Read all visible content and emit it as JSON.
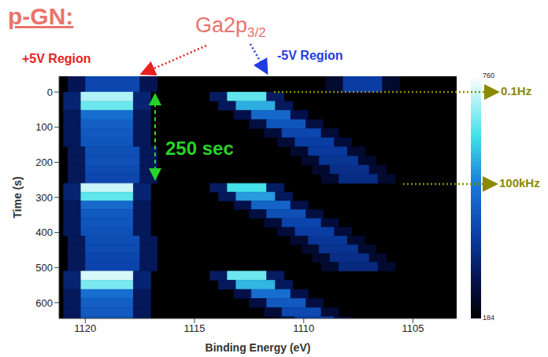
{
  "chart_data": {
    "type": "heatmap",
    "title": "p-GN:",
    "x_label": "Binding Energy (eV)",
    "y_label": "Time (s)",
    "xlim": [
      1121.2,
      1103
    ],
    "xticks": [
      1120,
      1115,
      1110,
      1105
    ],
    "ylim": [
      645,
      -45
    ],
    "yticks": [
      0,
      100,
      200,
      300,
      400,
      500,
      600
    ],
    "colorbar": {
      "range": [
        184,
        760
      ],
      "ticks": [
        184,
        760
      ]
    },
    "annotations": {
      "peak": {
        "text": "Ga2p",
        "subscript": "3/2"
      },
      "left_region": "+5V Region",
      "right_region": "-5V Region",
      "period": "250 sec",
      "low_freq": "0.1Hz",
      "high_freq": "100kHz"
    },
    "rows": [
      {
        "t0": -52,
        "t1": 0,
        "cells": [
          [
            1120.8,
            1120.0,
            280
          ],
          [
            1120.0,
            1117.5,
            400
          ],
          [
            1117.5,
            1116.7,
            280
          ],
          [
            1109.0,
            1108.2,
            240
          ],
          [
            1108.2,
            1106.4,
            380
          ],
          [
            1106.4,
            1105.6,
            240
          ]
        ]
      },
      {
        "t0": 0,
        "t1": 26,
        "cells": [
          [
            1121.0,
            1120.2,
            320
          ],
          [
            1120.2,
            1117.8,
            700
          ],
          [
            1117.8,
            1117.0,
            320
          ],
          [
            1114.3,
            1113.5,
            300
          ],
          [
            1113.5,
            1111.7,
            640
          ],
          [
            1111.7,
            1110.9,
            300
          ]
        ]
      },
      {
        "t0": 26,
        "t1": 52,
        "cells": [
          [
            1121.0,
            1120.2,
            320
          ],
          [
            1120.2,
            1117.8,
            650
          ],
          [
            1117.8,
            1117.0,
            320
          ],
          [
            1113.9,
            1113.1,
            290
          ],
          [
            1113.1,
            1111.3,
            560
          ],
          [
            1111.3,
            1110.5,
            290
          ]
        ]
      },
      {
        "t0": 52,
        "t1": 78,
        "cells": [
          [
            1121.0,
            1120.2,
            290
          ],
          [
            1120.2,
            1117.8,
            480
          ],
          [
            1117.8,
            1117.0,
            290
          ],
          [
            1113.2,
            1112.4,
            270
          ],
          [
            1112.4,
            1110.6,
            470
          ],
          [
            1110.6,
            1109.8,
            270
          ]
        ]
      },
      {
        "t0": 78,
        "t1": 104,
        "cells": [
          [
            1121.0,
            1120.2,
            290
          ],
          [
            1120.2,
            1117.8,
            450
          ],
          [
            1117.8,
            1117.0,
            290
          ],
          [
            1112.5,
            1111.7,
            260
          ],
          [
            1111.7,
            1109.9,
            430
          ],
          [
            1109.9,
            1109.1,
            260
          ]
        ]
      },
      {
        "t0": 104,
        "t1": 130,
        "cells": [
          [
            1121.0,
            1120.2,
            290
          ],
          [
            1120.2,
            1117.8,
            440
          ],
          [
            1117.8,
            1117.0,
            290
          ],
          [
            1111.8,
            1111.0,
            250
          ],
          [
            1111.0,
            1109.2,
            400
          ],
          [
            1109.2,
            1108.4,
            250
          ]
        ]
      },
      {
        "t0": 130,
        "t1": 156,
        "cells": [
          [
            1121.0,
            1120.2,
            290
          ],
          [
            1120.2,
            1117.8,
            430
          ],
          [
            1117.8,
            1117.0,
            290
          ],
          [
            1111.2,
            1110.4,
            250
          ],
          [
            1110.4,
            1108.6,
            380
          ],
          [
            1108.6,
            1107.8,
            250
          ]
        ]
      },
      {
        "t0": 156,
        "t1": 182,
        "cells": [
          [
            1120.8,
            1120.0,
            290
          ],
          [
            1120.0,
            1117.5,
            420
          ],
          [
            1117.5,
            1116.7,
            290
          ],
          [
            1110.6,
            1109.8,
            240
          ],
          [
            1109.8,
            1108.0,
            370
          ],
          [
            1108.0,
            1107.2,
            240
          ]
        ]
      },
      {
        "t0": 182,
        "t1": 208,
        "cells": [
          [
            1120.8,
            1120.0,
            290
          ],
          [
            1120.0,
            1117.5,
            420
          ],
          [
            1117.5,
            1116.7,
            290
          ],
          [
            1110.1,
            1109.3,
            240
          ],
          [
            1109.3,
            1107.5,
            360
          ],
          [
            1107.5,
            1106.7,
            240
          ]
        ]
      },
      {
        "t0": 208,
        "t1": 234,
        "cells": [
          [
            1120.8,
            1120.0,
            290
          ],
          [
            1120.0,
            1117.5,
            410
          ],
          [
            1117.5,
            1116.7,
            290
          ],
          [
            1109.6,
            1108.8,
            240
          ],
          [
            1108.8,
            1107.0,
            350
          ],
          [
            1107.0,
            1106.2,
            240
          ]
        ]
      },
      {
        "t0": 234,
        "t1": 260,
        "cells": [
          [
            1120.8,
            1120.0,
            290
          ],
          [
            1120.0,
            1117.5,
            400
          ],
          [
            1117.5,
            1116.7,
            290
          ],
          [
            1109.2,
            1108.4,
            240
          ],
          [
            1108.4,
            1106.6,
            340
          ],
          [
            1106.6,
            1105.8,
            240
          ]
        ]
      },
      {
        "t0": 260,
        "t1": 285,
        "cells": [
          [
            1121.0,
            1120.2,
            320
          ],
          [
            1120.2,
            1117.8,
            720
          ],
          [
            1117.8,
            1117.0,
            320
          ],
          [
            1114.3,
            1113.5,
            300
          ],
          [
            1113.5,
            1111.7,
            620
          ],
          [
            1111.7,
            1110.9,
            300
          ]
        ]
      },
      {
        "t0": 285,
        "t1": 310,
        "cells": [
          [
            1121.0,
            1120.2,
            320
          ],
          [
            1120.2,
            1117.8,
            640
          ],
          [
            1117.8,
            1117.0,
            320
          ],
          [
            1113.9,
            1113.1,
            290
          ],
          [
            1113.1,
            1111.3,
            540
          ],
          [
            1111.3,
            1110.5,
            290
          ]
        ]
      },
      {
        "t0": 310,
        "t1": 335,
        "cells": [
          [
            1121.0,
            1120.2,
            290
          ],
          [
            1120.2,
            1117.8,
            470
          ],
          [
            1117.8,
            1117.0,
            290
          ],
          [
            1113.2,
            1112.4,
            270
          ],
          [
            1112.4,
            1110.6,
            460
          ],
          [
            1110.6,
            1109.8,
            270
          ]
        ]
      },
      {
        "t0": 335,
        "t1": 360,
        "cells": [
          [
            1121.0,
            1120.2,
            290
          ],
          [
            1120.2,
            1117.8,
            440
          ],
          [
            1117.8,
            1117.0,
            290
          ],
          [
            1112.5,
            1111.7,
            260
          ],
          [
            1111.7,
            1109.9,
            420
          ],
          [
            1109.9,
            1109.1,
            260
          ]
        ]
      },
      {
        "t0": 360,
        "t1": 385,
        "cells": [
          [
            1121.0,
            1120.2,
            290
          ],
          [
            1120.2,
            1117.8,
            430
          ],
          [
            1117.8,
            1117.0,
            290
          ],
          [
            1111.8,
            1111.0,
            250
          ],
          [
            1111.0,
            1109.2,
            395
          ],
          [
            1109.2,
            1108.4,
            250
          ]
        ]
      },
      {
        "t0": 385,
        "t1": 410,
        "cells": [
          [
            1121.0,
            1120.2,
            290
          ],
          [
            1120.2,
            1117.8,
            420
          ],
          [
            1117.8,
            1117.0,
            290
          ],
          [
            1111.2,
            1110.4,
            250
          ],
          [
            1110.4,
            1108.6,
            380
          ],
          [
            1108.6,
            1107.8,
            250
          ]
        ]
      },
      {
        "t0": 410,
        "t1": 435,
        "cells": [
          [
            1120.8,
            1120.0,
            290
          ],
          [
            1120.0,
            1117.5,
            415
          ],
          [
            1117.5,
            1116.7,
            290
          ],
          [
            1110.6,
            1109.8,
            240
          ],
          [
            1109.8,
            1108.0,
            365
          ],
          [
            1108.0,
            1107.2,
            240
          ]
        ]
      },
      {
        "t0": 435,
        "t1": 460,
        "cells": [
          [
            1120.8,
            1120.0,
            290
          ],
          [
            1120.0,
            1117.5,
            410
          ],
          [
            1117.5,
            1116.7,
            290
          ],
          [
            1110.1,
            1109.3,
            240
          ],
          [
            1109.3,
            1107.5,
            355
          ],
          [
            1107.5,
            1106.7,
            240
          ]
        ]
      },
      {
        "t0": 460,
        "t1": 485,
        "cells": [
          [
            1120.8,
            1120.0,
            290
          ],
          [
            1120.0,
            1117.5,
            400
          ],
          [
            1117.5,
            1116.7,
            290
          ],
          [
            1109.6,
            1108.8,
            240
          ],
          [
            1108.8,
            1107.0,
            345
          ],
          [
            1107.0,
            1106.2,
            240
          ]
        ]
      },
      {
        "t0": 485,
        "t1": 510,
        "cells": [
          [
            1120.8,
            1120.0,
            290
          ],
          [
            1120.0,
            1117.5,
            395
          ],
          [
            1117.5,
            1116.7,
            290
          ],
          [
            1109.2,
            1108.4,
            240
          ],
          [
            1108.4,
            1106.6,
            335
          ],
          [
            1106.6,
            1105.8,
            240
          ]
        ]
      },
      {
        "t0": 510,
        "t1": 536,
        "cells": [
          [
            1121.0,
            1120.2,
            320
          ],
          [
            1120.2,
            1117.8,
            730
          ],
          [
            1117.8,
            1117.0,
            320
          ],
          [
            1114.3,
            1113.5,
            300
          ],
          [
            1113.5,
            1111.7,
            650
          ],
          [
            1111.7,
            1110.9,
            300
          ]
        ]
      },
      {
        "t0": 536,
        "t1": 562,
        "cells": [
          [
            1121.0,
            1120.2,
            320
          ],
          [
            1120.2,
            1117.8,
            660
          ],
          [
            1117.8,
            1117.0,
            320
          ],
          [
            1113.9,
            1113.1,
            290
          ],
          [
            1113.1,
            1111.3,
            570
          ],
          [
            1111.3,
            1110.5,
            290
          ]
        ]
      },
      {
        "t0": 562,
        "t1": 588,
        "cells": [
          [
            1121.0,
            1120.2,
            290
          ],
          [
            1120.2,
            1117.8,
            480
          ],
          [
            1117.8,
            1117.0,
            290
          ],
          [
            1113.2,
            1112.4,
            270
          ],
          [
            1112.4,
            1110.6,
            480
          ],
          [
            1110.6,
            1109.8,
            270
          ]
        ]
      },
      {
        "t0": 588,
        "t1": 614,
        "cells": [
          [
            1121.0,
            1120.2,
            290
          ],
          [
            1120.2,
            1117.8,
            450
          ],
          [
            1117.8,
            1117.0,
            290
          ],
          [
            1112.5,
            1111.7,
            260
          ],
          [
            1111.7,
            1109.9,
            440
          ],
          [
            1109.9,
            1109.1,
            260
          ]
        ]
      },
      {
        "t0": 614,
        "t1": 640,
        "cells": [
          [
            1121.0,
            1120.2,
            290
          ],
          [
            1120.2,
            1117.8,
            440
          ],
          [
            1117.8,
            1117.0,
            290
          ],
          [
            1111.8,
            1111.0,
            250
          ],
          [
            1111.0,
            1109.2,
            405
          ],
          [
            1109.2,
            1108.4,
            250
          ]
        ]
      },
      {
        "t0": 640,
        "t1": 666,
        "cells": [
          [
            1121.0,
            1120.2,
            290
          ],
          [
            1120.2,
            1117.8,
            430
          ],
          [
            1117.8,
            1117.0,
            290
          ],
          [
            1111.2,
            1110.4,
            250
          ],
          [
            1110.4,
            1108.6,
            385
          ],
          [
            1108.6,
            1107.8,
            250
          ]
        ]
      }
    ]
  }
}
